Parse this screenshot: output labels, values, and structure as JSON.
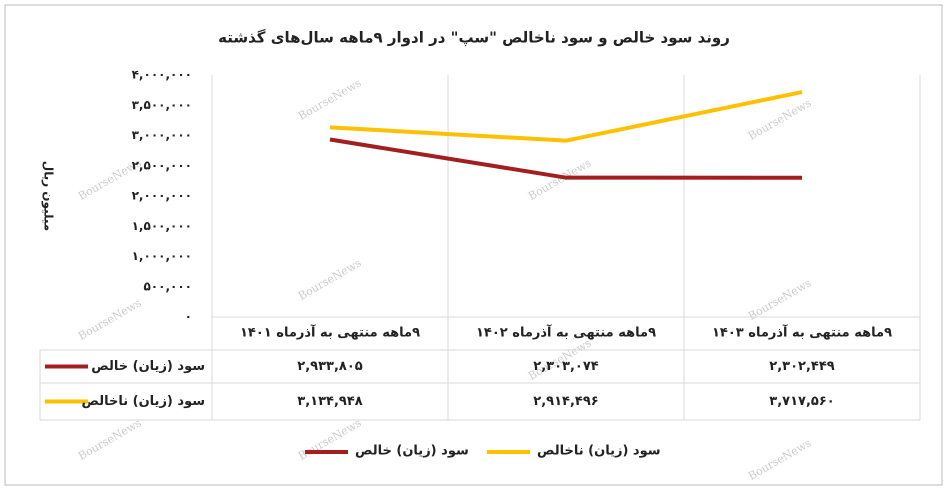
{
  "chart_data": {
    "type": "line",
    "title": "روند سود خالص و سود ناخالص \"سپ\" در ادوار ۹ماهه سال‌های گذشته",
    "y_label": "میلیون ریال",
    "watermark": "BourseNews",
    "categories": [
      "۹ماهه منتهی به آذرماه ۱۴۰۱",
      "۹ماهه منتهی به آذرماه ۱۴۰۲",
      "۹ماهه منتهی به آذرماه ۱۴۰۳"
    ],
    "series": [
      {
        "name": "سود (زیان) خالص",
        "color": "#a31f1f",
        "values": [
          2933805,
          2303074,
          2302449
        ],
        "value_labels": [
          "۲,۹۳۳,۸۰۵",
          "۲,۳۰۳,۰۷۴",
          "۲,۳۰۲,۴۴۹"
        ]
      },
      {
        "name": "سود (زیان) ناخالص",
        "color": "#ffc000",
        "values": [
          3134948,
          2914496,
          3717560
        ],
        "value_labels": [
          "۳,۱۳۴,۹۴۸",
          "۲,۹۱۴,۴۹۶",
          "۳,۷۱۷,۵۶۰"
        ]
      }
    ],
    "ylim": [
      0,
      4000000
    ],
    "yticks": [
      {
        "value": 0,
        "label": "۰"
      },
      {
        "value": 500000,
        "label": "۵۰۰,۰۰۰"
      },
      {
        "value": 1000000,
        "label": "۱,۰۰۰,۰۰۰"
      },
      {
        "value": 1500000,
        "label": "۱,۵۰۰,۰۰۰"
      },
      {
        "value": 2000000,
        "label": "۲,۰۰۰,۰۰۰"
      },
      {
        "value": 2500000,
        "label": "۲,۵۰۰,۰۰۰"
      },
      {
        "value": 3000000,
        "label": "۳,۰۰۰,۰۰۰"
      },
      {
        "value": 3500000,
        "label": "۳,۵۰۰,۰۰۰"
      },
      {
        "value": 4000000,
        "label": "۴,۰۰۰,۰۰۰"
      }
    ]
  }
}
